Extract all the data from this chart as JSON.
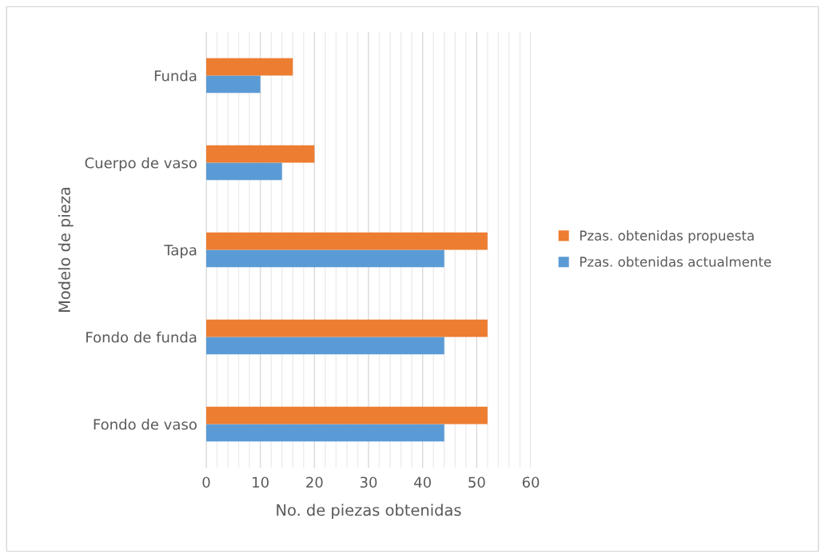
{
  "chart_data": {
    "type": "bar",
    "orientation": "horizontal",
    "xlabel": "No. de piezas obtenidas",
    "ylabel": "Modelo de pieza",
    "categories": [
      "Funda",
      "Cuerpo de vaso",
      "Tapa",
      "Fondo de funda",
      "Fondo de vaso"
    ],
    "series": [
      {
        "name": "Pzas. obtenidas actualmente",
        "color": "#5b9bd5",
        "values": [
          10,
          14,
          44,
          44,
          44
        ]
      },
      {
        "name": "Pzas. obtenidas propuesta",
        "color": "#ed7d31",
        "values": [
          16,
          20,
          52,
          52,
          52
        ]
      }
    ],
    "xlim": [
      0,
      60
    ],
    "xticks": [
      0,
      {
        "value": 2,
        "label": null
      },
      {
        "value": 4,
        "label": null
      },
      {
        "value": 6,
        "label": null
      },
      {
        "value": 8,
        "label": null
      },
      10,
      {
        "value": 12,
        "label": null
      },
      {
        "value": 14,
        "label": null
      },
      {
        "value": 16,
        "label": null
      },
      {
        "value": 18,
        "label": null
      },
      20,
      {
        "value": 22,
        "label": null
      },
      {
        "value": 24,
        "label": null
      },
      {
        "value": 26,
        "label": null
      },
      {
        "value": 28,
        "label": null
      },
      30,
      {
        "value": 32,
        "label": null
      },
      {
        "value": 34,
        "label": null
      },
      {
        "value": 36,
        "label": null
      },
      {
        "value": 38,
        "label": null
      },
      40,
      {
        "value": 42,
        "label": null
      },
      {
        "value": 44,
        "label": null
      },
      {
        "value": 46,
        "label": null
      },
      {
        "value": 48,
        "label": null
      },
      50,
      {
        "value": 52,
        "label": null
      },
      {
        "value": 54,
        "label": null
      },
      {
        "value": 56,
        "label": null
      },
      {
        "value": 58,
        "label": null
      },
      60
    ],
    "grid": "x",
    "legend": "right"
  }
}
